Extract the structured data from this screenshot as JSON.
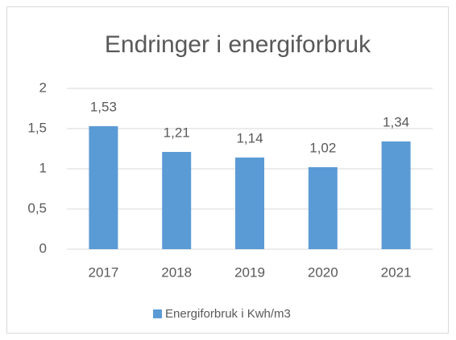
{
  "chart_data": {
    "type": "bar",
    "title": "Endringer i energiforbruk",
    "categories": [
      "2017",
      "2018",
      "2019",
      "2020",
      "2021"
    ],
    "series": [
      {
        "name": "Energiforbruk i Kwh/m3",
        "color": "#5b9bd5",
        "values": [
          1.53,
          1.21,
          1.14,
          1.02,
          1.34
        ],
        "value_labels": [
          "1,53",
          "1,21",
          "1,14",
          "1,02",
          "1,34"
        ]
      }
    ],
    "ylim": [
      0,
      2
    ],
    "yticks": [
      0,
      {
        "value": 0.5,
        "label": "0,5"
      },
      1,
      {
        "value": 1.5,
        "label": "1,5"
      },
      2
    ],
    "grid": true,
    "legend": "bottom"
  }
}
